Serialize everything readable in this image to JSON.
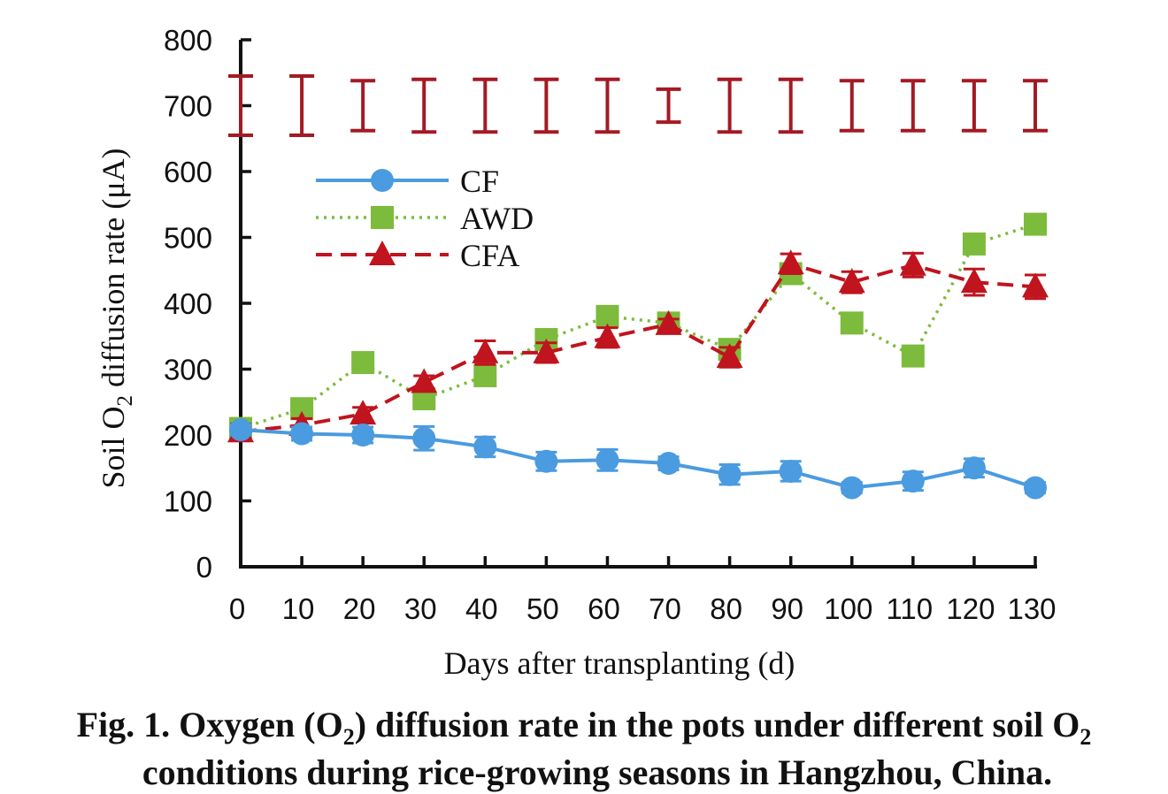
{
  "chart_data": {
    "type": "line",
    "ylabel_prefix": "Soil O",
    "ylabel_sub": "2",
    "ylabel_suffix": " diffusion rate (μA)",
    "xlabel": "Days after transplanting (d)",
    "x": [
      0,
      10,
      20,
      30,
      40,
      50,
      60,
      70,
      80,
      90,
      100,
      110,
      120,
      130
    ],
    "xlim": [
      0,
      130
    ],
    "ylim": [
      0,
      800
    ],
    "yticks": [
      0,
      100,
      200,
      300,
      400,
      500,
      600,
      700,
      800
    ],
    "series": [
      {
        "name": "CF",
        "color": "#4a9be0",
        "marker": "circle",
        "linestyle": "solid",
        "values": [
          208,
          202,
          200,
          195,
          182,
          160,
          162,
          157,
          140,
          145,
          120,
          130,
          150,
          120
        ],
        "errors": [
          8,
          10,
          12,
          18,
          15,
          14,
          16,
          10,
          15,
          15,
          8,
          14,
          14,
          8
        ]
      },
      {
        "name": "AWD",
        "color": "#7dbb3c",
        "marker": "square",
        "linestyle": "dotted",
        "values": [
          210,
          240,
          310,
          255,
          290,
          345,
          380,
          370,
          330,
          445,
          370,
          320,
          490,
          520
        ],
        "errors": [
          0,
          0,
          0,
          0,
          0,
          0,
          0,
          0,
          0,
          0,
          0,
          0,
          0,
          0
        ]
      },
      {
        "name": "CFA",
        "color": "#c0141e",
        "marker": "triangle",
        "linestyle": "dashed",
        "values": [
          205,
          215,
          232,
          280,
          325,
          325,
          348,
          368,
          318,
          460,
          432,
          458,
          432,
          425
        ],
        "errors": [
          12,
          10,
          10,
          10,
          18,
          15,
          15,
          8,
          15,
          15,
          16,
          18,
          20,
          18
        ]
      }
    ],
    "top_error_bars": {
      "color": "#a31a24",
      "center": [
        700,
        700,
        700,
        700,
        700,
        700,
        700,
        700,
        700,
        700,
        700,
        700,
        700,
        700
      ],
      "half_range": [
        45,
        45,
        38,
        40,
        40,
        40,
        40,
        25,
        40,
        40,
        38,
        38,
        38,
        38
      ]
    },
    "legend_position": "upper-left-inside"
  },
  "caption": {
    "line1_a": "Fig. 1. Oxygen (O",
    "line1_sub1": "2",
    "line1_b": ") diffusion rate in the pots under different soil O",
    "line1_sub2": "2",
    "line2": "conditions during rice-growing seasons in Hangzhou, China."
  }
}
